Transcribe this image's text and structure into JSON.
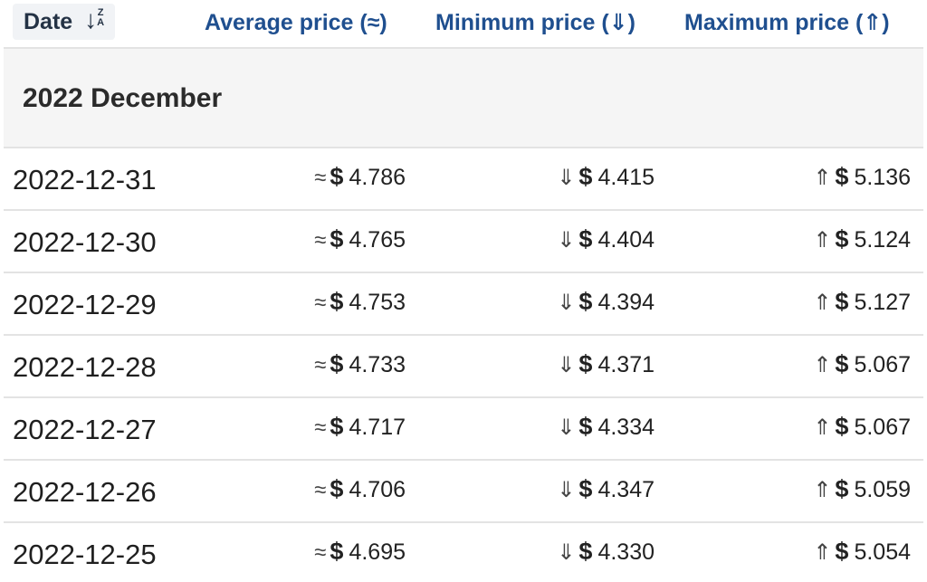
{
  "header": {
    "date_label": "Date",
    "sort_icon_arrow": "↓",
    "sort_icon_z": "Z",
    "sort_icon_a": "A",
    "avg_label": "Average price (≈)",
    "min_label": "Minimum price (⇓)",
    "max_label": "Maximum price (⇑)"
  },
  "group": {
    "title": "2022 December"
  },
  "symbols": {
    "avg": "≈",
    "min": "⇓",
    "max": "⇑",
    "currency": "$"
  },
  "rows": [
    {
      "date": "2022-12-31",
      "avg": "4.786",
      "min": "4.415",
      "max": "5.136"
    },
    {
      "date": "2022-12-30",
      "avg": "4.765",
      "min": "4.404",
      "max": "5.124"
    },
    {
      "date": "2022-12-29",
      "avg": "4.753",
      "min": "4.394",
      "max": "5.127"
    },
    {
      "date": "2022-12-28",
      "avg": "4.733",
      "min": "4.371",
      "max": "5.067"
    },
    {
      "date": "2022-12-27",
      "avg": "4.717",
      "min": "4.334",
      "max": "5.067"
    },
    {
      "date": "2022-12-26",
      "avg": "4.706",
      "min": "4.347",
      "max": "5.059"
    },
    {
      "date": "2022-12-25",
      "avg": "4.695",
      "min": "4.330",
      "max": "5.054"
    }
  ],
  "colors": {
    "header_text": "#1f4f8f",
    "date_header_bg": "#f1f3f6",
    "group_bg": "#f5f5f5",
    "border": "#e3e3e3"
  }
}
